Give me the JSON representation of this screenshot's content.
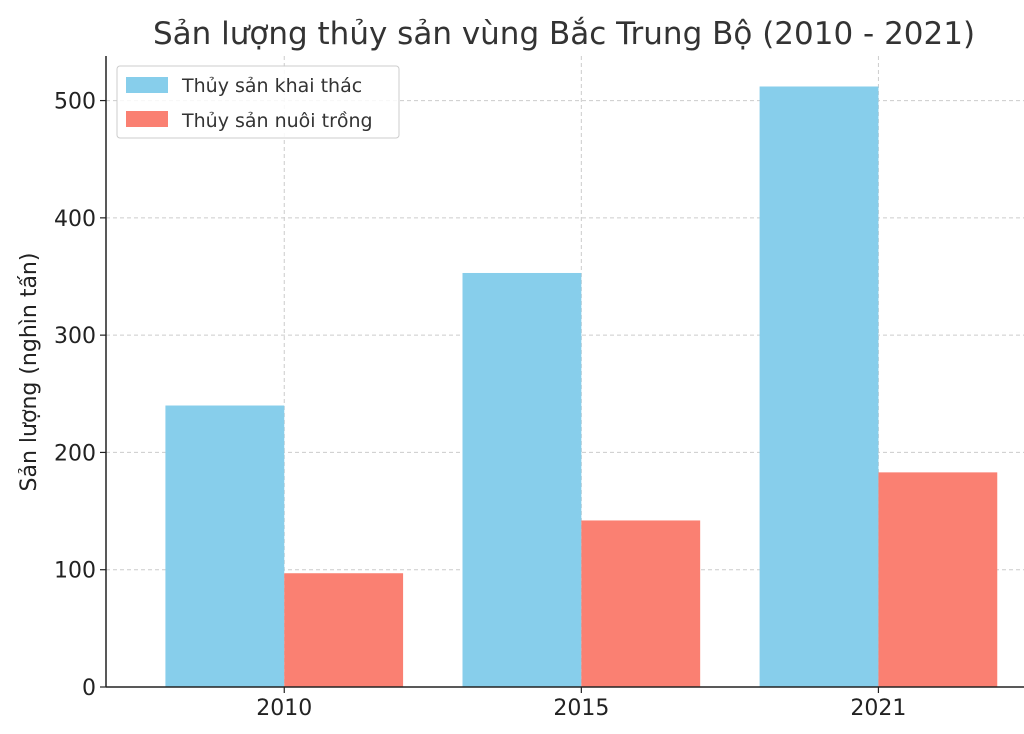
{
  "chart_data": {
    "type": "bar",
    "title": "Sản lượng thủy sản vùng Bắc Trung Bộ (2010 - 2021)",
    "xlabel": "",
    "ylabel": "Sản lượng (nghìn tấn)",
    "categories": [
      "2010",
      "2015",
      "2021"
    ],
    "series": [
      {
        "name": "Thủy sản khai thác",
        "values": [
          240,
          353,
          512
        ],
        "color": "#87CEEB"
      },
      {
        "name": "Thủy sản nuôi trồng",
        "values": [
          97,
          142,
          183
        ],
        "color": "#FA8072"
      }
    ],
    "ylim": [
      0,
      538
    ],
    "yticks": [
      "0",
      "100",
      "200",
      "300",
      "400",
      "500"
    ],
    "grid": true,
    "legend_position": "top-left"
  }
}
